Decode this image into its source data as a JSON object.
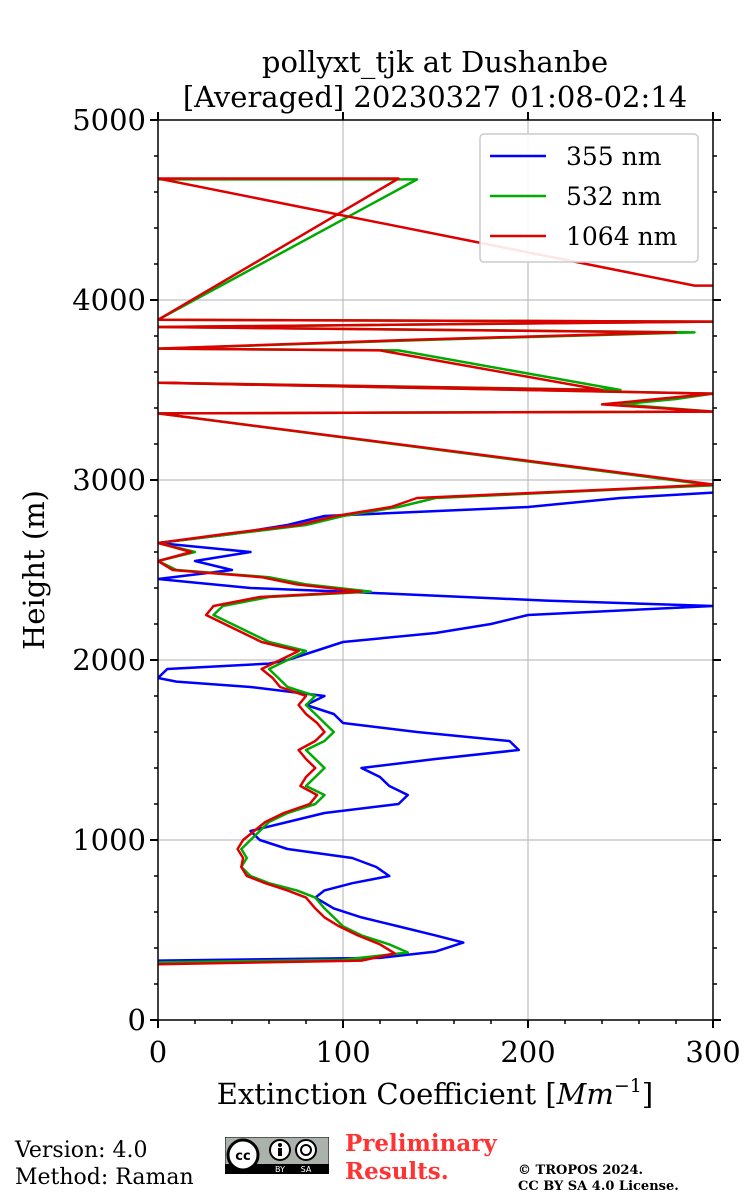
{
  "chart_data": {
    "type": "line",
    "title_line1": "pollyxt_tjk at Dushanbe",
    "title_line2": "[Averaged] 20230327 01:08-02:14",
    "xlabel_text": "Extinction Coefficient [",
    "xlabel_unit_base": "Mm",
    "xlabel_unit_exp": "−1",
    "xlabel_close": "]",
    "ylabel": "Height (m)",
    "xlim": [
      0,
      300
    ],
    "ylim": [
      0,
      5000
    ],
    "x_ticks": [
      0,
      100,
      200,
      300
    ],
    "x_tick_labels": [
      "0",
      "100",
      "200",
      "300"
    ],
    "y_ticks": [
      0,
      1000,
      2000,
      3000,
      4000,
      5000
    ],
    "y_tick_labels": [
      "0",
      "1000",
      "2000",
      "3000",
      "4000",
      "5000"
    ],
    "grid": true,
    "legend_position": "top-right",
    "series": [
      {
        "name": "355 nm",
        "color": "#0000ff",
        "points": [
          [
            0,
            330
          ],
          [
            120,
            345
          ],
          [
            150,
            380
          ],
          [
            165,
            430
          ],
          [
            150,
            470
          ],
          [
            130,
            520
          ],
          [
            110,
            570
          ],
          [
            95,
            620
          ],
          [
            85,
            680
          ],
          [
            90,
            720
          ],
          [
            105,
            760
          ],
          [
            125,
            800
          ],
          [
            118,
            850
          ],
          [
            105,
            900
          ],
          [
            70,
            950
          ],
          [
            55,
            1000
          ],
          [
            50,
            1050
          ],
          [
            70,
            1100
          ],
          [
            90,
            1150
          ],
          [
            130,
            1200
          ],
          [
            135,
            1250
          ],
          [
            125,
            1300
          ],
          [
            120,
            1350
          ],
          [
            110,
            1400
          ],
          [
            150,
            1450
          ],
          [
            195,
            1500
          ],
          [
            190,
            1550
          ],
          [
            140,
            1600
          ],
          [
            100,
            1650
          ],
          [
            95,
            1700
          ],
          [
            80,
            1750
          ],
          [
            90,
            1800
          ],
          [
            50,
            1850
          ],
          [
            10,
            1880
          ],
          [
            0,
            1900
          ],
          [
            5,
            1950
          ],
          [
            60,
            1980
          ],
          [
            70,
            2000
          ],
          [
            85,
            2050
          ],
          [
            100,
            2100
          ],
          [
            150,
            2150
          ],
          [
            180,
            2200
          ],
          [
            200,
            2250
          ],
          [
            300,
            2300
          ],
          [
            210,
            2330
          ],
          [
            100,
            2380
          ],
          [
            50,
            2400
          ],
          [
            20,
            2430
          ],
          [
            0,
            2450
          ],
          [
            40,
            2500
          ],
          [
            20,
            2550
          ],
          [
            50,
            2600
          ],
          [
            0,
            2650
          ],
          [
            40,
            2700
          ],
          [
            70,
            2750
          ],
          [
            90,
            2800
          ],
          [
            200,
            2850
          ],
          [
            250,
            2900
          ],
          [
            300,
            2930
          ]
        ]
      },
      {
        "name": "532 nm",
        "color": "#00aa00",
        "points": [
          [
            0,
            320
          ],
          [
            100,
            335
          ],
          [
            135,
            375
          ],
          [
            125,
            420
          ],
          [
            110,
            470
          ],
          [
            100,
            520
          ],
          [
            95,
            570
          ],
          [
            90,
            620
          ],
          [
            85,
            680
          ],
          [
            75,
            720
          ],
          [
            60,
            760
          ],
          [
            50,
            800
          ],
          [
            45,
            850
          ],
          [
            48,
            900
          ],
          [
            45,
            950
          ],
          [
            50,
            1000
          ],
          [
            55,
            1050
          ],
          [
            60,
            1100
          ],
          [
            70,
            1150
          ],
          [
            85,
            1200
          ],
          [
            90,
            1250
          ],
          [
            80,
            1300
          ],
          [
            85,
            1350
          ],
          [
            90,
            1400
          ],
          [
            85,
            1450
          ],
          [
            80,
            1500
          ],
          [
            90,
            1550
          ],
          [
            95,
            1600
          ],
          [
            90,
            1650
          ],
          [
            85,
            1700
          ],
          [
            80,
            1750
          ],
          [
            85,
            1800
          ],
          [
            70,
            1850
          ],
          [
            65,
            1900
          ],
          [
            60,
            1950
          ],
          [
            70,
            2000
          ],
          [
            80,
            2050
          ],
          [
            60,
            2100
          ],
          [
            50,
            2150
          ],
          [
            40,
            2200
          ],
          [
            30,
            2250
          ],
          [
            35,
            2300
          ],
          [
            60,
            2350
          ],
          [
            115,
            2380
          ],
          [
            80,
            2420
          ],
          [
            60,
            2460
          ],
          [
            10,
            2500
          ],
          [
            0,
            2550
          ],
          [
            20,
            2600
          ],
          [
            0,
            2650
          ],
          [
            40,
            2700
          ],
          [
            80,
            2750
          ],
          [
            100,
            2800
          ],
          [
            130,
            2850
          ],
          [
            150,
            2900
          ],
          [
            255,
            2950
          ],
          [
            300,
            2970
          ],
          [
            0,
            3370
          ],
          [
            300,
            3380
          ],
          [
            250,
            3420
          ],
          [
            280,
            3450
          ],
          [
            300,
            3480
          ],
          [
            0,
            3540
          ],
          [
            250,
            3500
          ],
          [
            130,
            3720
          ],
          [
            0,
            3730
          ],
          [
            150,
            3780
          ],
          [
            290,
            3820
          ],
          [
            0,
            3850
          ],
          [
            300,
            3880
          ],
          [
            0,
            3890
          ],
          [
            140,
            4670
          ],
          [
            0,
            4670
          ]
        ]
      },
      {
        "name": "1064 nm",
        "color": "#dd0000",
        "points": [
          [
            0,
            310
          ],
          [
            110,
            330
          ],
          [
            128,
            370
          ],
          [
            120,
            420
          ],
          [
            108,
            470
          ],
          [
            98,
            520
          ],
          [
            90,
            570
          ],
          [
            85,
            620
          ],
          [
            80,
            680
          ],
          [
            70,
            720
          ],
          [
            58,
            760
          ],
          [
            48,
            800
          ],
          [
            45,
            850
          ],
          [
            46,
            900
          ],
          [
            43,
            950
          ],
          [
            46,
            1000
          ],
          [
            52,
            1050
          ],
          [
            58,
            1100
          ],
          [
            68,
            1150
          ],
          [
            82,
            1200
          ],
          [
            86,
            1250
          ],
          [
            77,
            1300
          ],
          [
            80,
            1350
          ],
          [
            85,
            1400
          ],
          [
            80,
            1450
          ],
          [
            76,
            1500
          ],
          [
            85,
            1550
          ],
          [
            90,
            1600
          ],
          [
            86,
            1650
          ],
          [
            80,
            1700
          ],
          [
            76,
            1750
          ],
          [
            80,
            1800
          ],
          [
            66,
            1850
          ],
          [
            62,
            1900
          ],
          [
            56,
            1950
          ],
          [
            66,
            2000
          ],
          [
            76,
            2050
          ],
          [
            56,
            2100
          ],
          [
            46,
            2150
          ],
          [
            36,
            2200
          ],
          [
            26,
            2250
          ],
          [
            30,
            2300
          ],
          [
            55,
            2350
          ],
          [
            110,
            2380
          ],
          [
            75,
            2420
          ],
          [
            56,
            2460
          ],
          [
            8,
            2500
          ],
          [
            0,
            2550
          ],
          [
            18,
            2600
          ],
          [
            0,
            2650
          ],
          [
            36,
            2700
          ],
          [
            76,
            2750
          ],
          [
            96,
            2800
          ],
          [
            126,
            2850
          ],
          [
            140,
            2900
          ],
          [
            250,
            2950
          ],
          [
            300,
            2975
          ],
          [
            0,
            3370
          ],
          [
            300,
            3380
          ],
          [
            240,
            3420
          ],
          [
            270,
            3450
          ],
          [
            300,
            3480
          ],
          [
            0,
            3540
          ],
          [
            240,
            3500
          ],
          [
            120,
            3720
          ],
          [
            0,
            3730
          ],
          [
            140,
            3780
          ],
          [
            280,
            3820
          ],
          [
            0,
            3850
          ],
          [
            300,
            3880
          ],
          [
            0,
            3890
          ],
          [
            130,
            4675
          ],
          [
            0,
            4675
          ],
          [
            290,
            4080
          ],
          [
            300,
            4080
          ]
        ]
      }
    ]
  },
  "footer": {
    "version": "Version: 4.0",
    "method": "Method: Raman",
    "preliminary_line1": "Preliminary",
    "preliminary_line2": "Results.",
    "copyright_line1": "© TROPOS 2024.",
    "copyright_line2": "CC BY SA 4.0 License.",
    "cc_text": "cc",
    "cc_by": "BY",
    "cc_sa": "SA"
  }
}
